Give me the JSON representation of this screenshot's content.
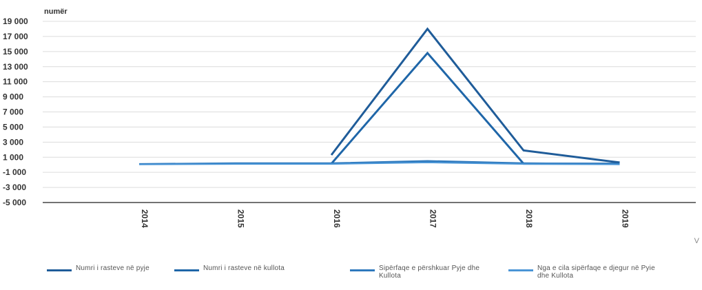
{
  "chart_data": {
    "type": "line",
    "ylabel": "numër",
    "xlabel": "",
    "categories": [
      "2014",
      "2015",
      "2016",
      "2017",
      "2018",
      "2019"
    ],
    "ylim": [
      -5000,
      19000
    ],
    "yticks": [
      19000,
      17000,
      15000,
      13000,
      11000,
      9000,
      7000,
      5000,
      3000,
      1000,
      -1000,
      -3000,
      -5000
    ],
    "ytick_labels": [
      "19 000",
      "17 000",
      "15 000",
      "13 000",
      "11 000",
      "9 000",
      "7 000",
      "5 000",
      "3 000",
      "1 000",
      "-1 000",
      "-3 000",
      "-5 000"
    ],
    "grid": true,
    "legend_position": "bottom",
    "series": [
      {
        "name": "Numri i rasteve në pyje",
        "values": [
          null,
          null,
          1300,
          18000,
          1900,
          300
        ],
        "color": "#1f5c99"
      },
      {
        "name": "Numri i rasteve në kullota",
        "values": [
          null,
          null,
          150,
          14800,
          150,
          150
        ],
        "color": "#1f66a8"
      },
      {
        "name": "Sipërfaqe e përshkuar Pyje dhe Kullota",
        "values": [
          100,
          200,
          200,
          500,
          200,
          100
        ],
        "color": "#2e79bd"
      },
      {
        "name": "Nga e cila sipërfaqe e djegur në Pyie dhe Kullota",
        "values": [
          50,
          100,
          100,
          300,
          100,
          50
        ],
        "color": "#4a95d6"
      }
    ]
  },
  "corner_text": "V"
}
